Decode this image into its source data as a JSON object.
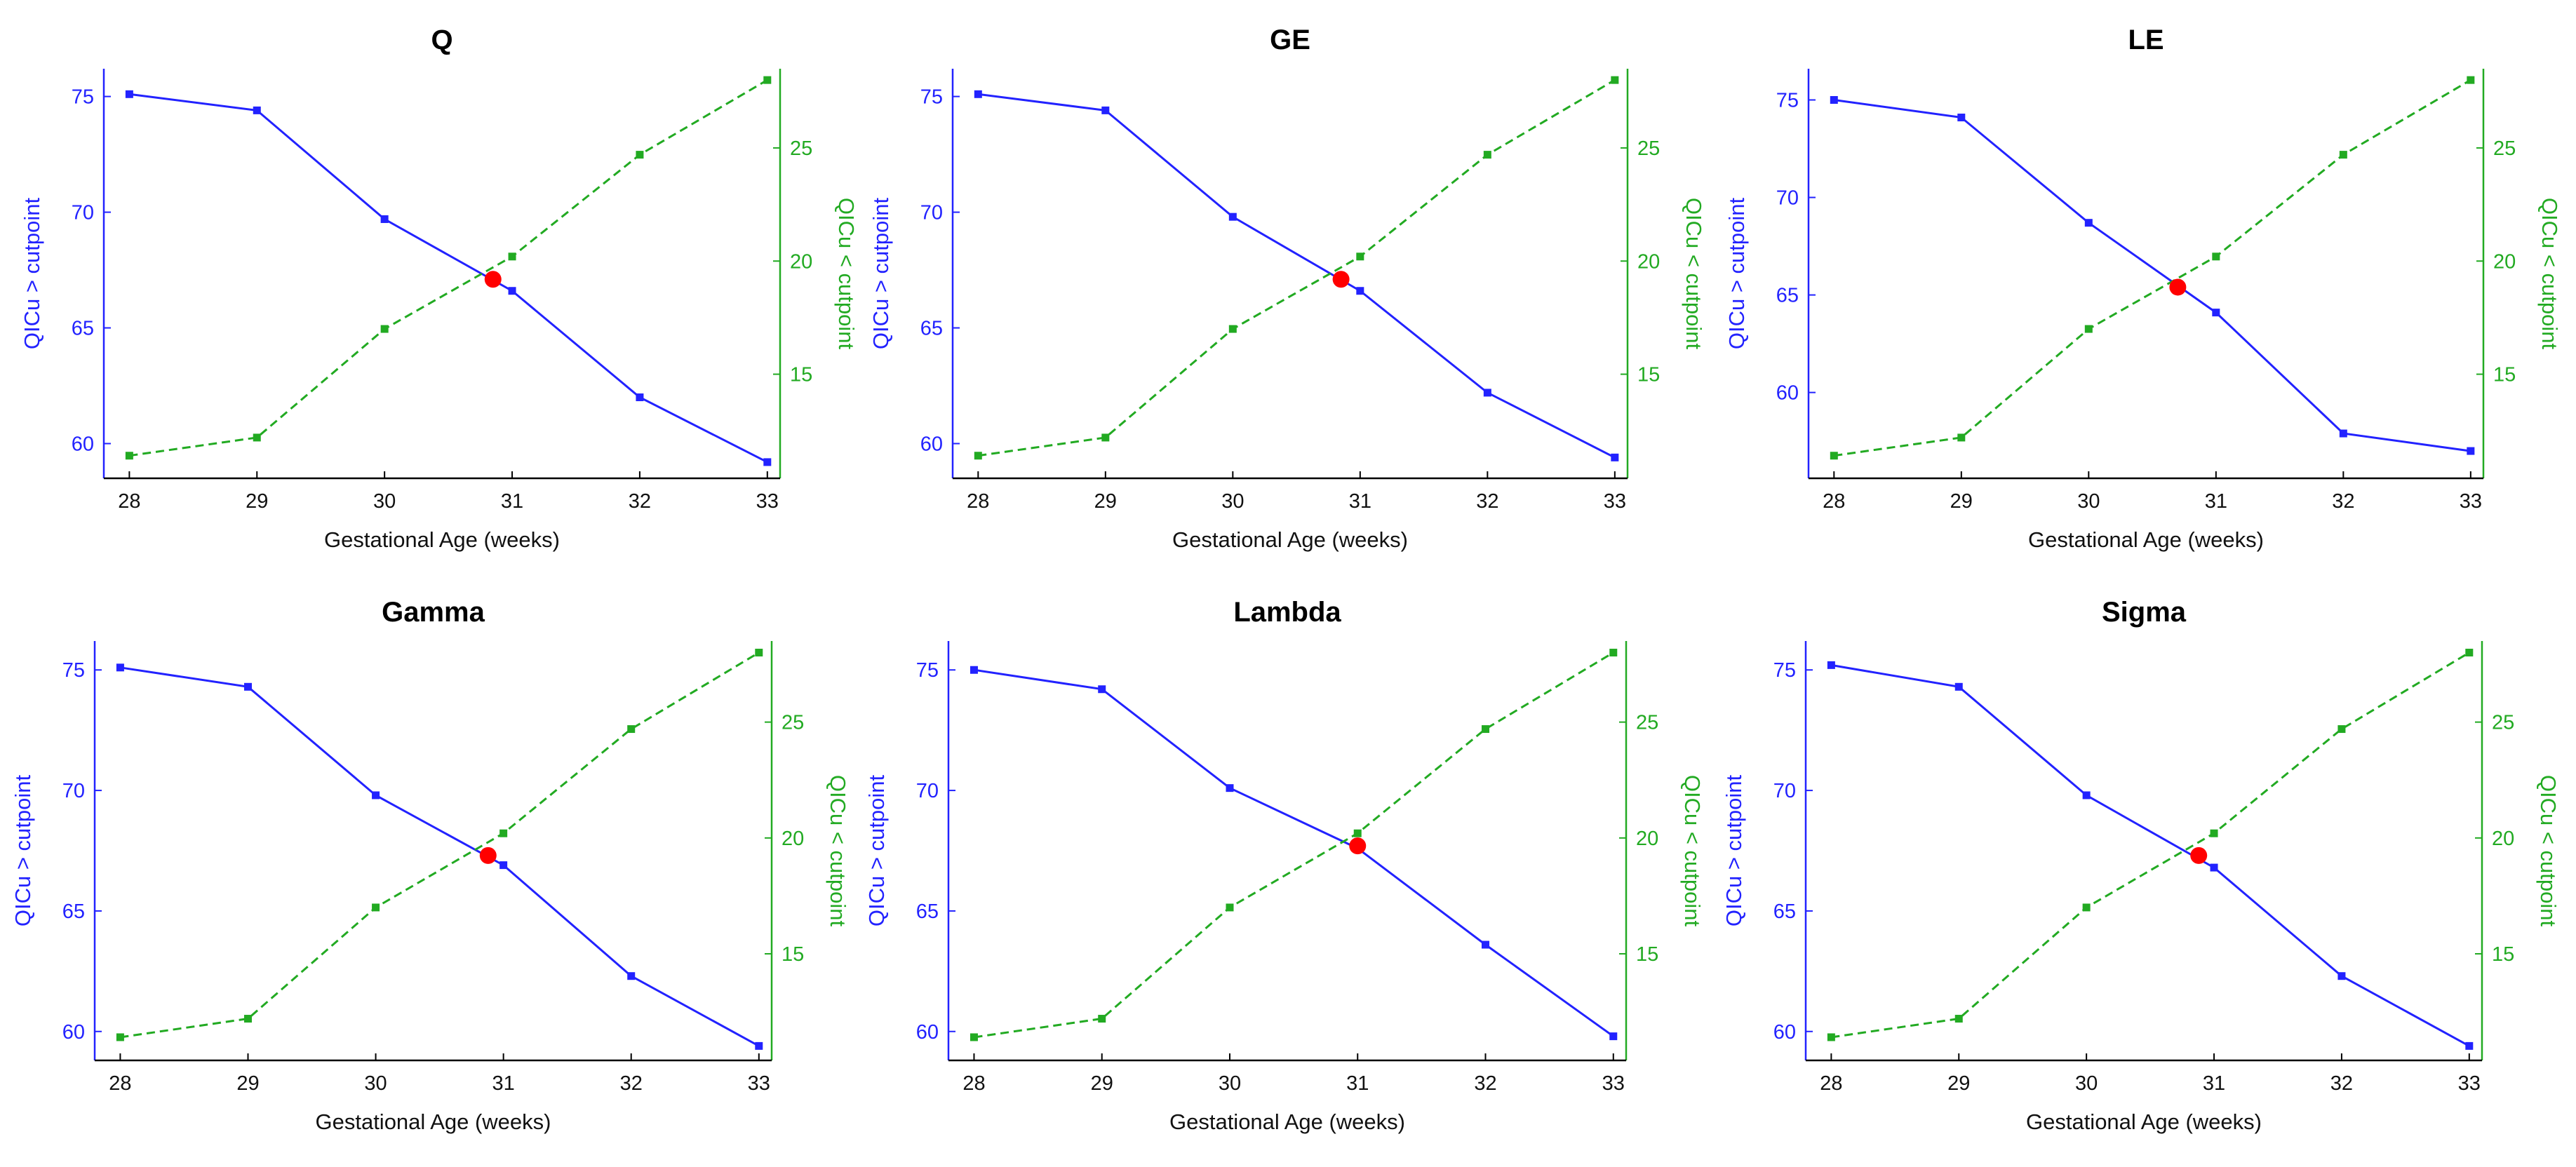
{
  "figure": {
    "colors": {
      "left_series": "#2222ff",
      "right_series": "#22aa22",
      "crossing_marker": "#ff0000",
      "axis": "#000000"
    }
  },
  "chart_data": [
    {
      "type": "line",
      "title": "Q",
      "xlabel": "Gestational Age (weeks)",
      "ylabel_left": "QICu > cutpoint",
      "ylabel_right": "QICu < cutpoint",
      "x": [
        28,
        29,
        30,
        31,
        32,
        33
      ],
      "xlim": [
        27.8,
        33.1
      ],
      "ylim_left": [
        58.5,
        76.2
      ],
      "yticks_left": [
        60,
        65,
        70,
        75
      ],
      "ylim_right": [
        10.4,
        28.5
      ],
      "yticks_right": [
        15,
        20,
        25
      ],
      "series": [
        {
          "axis": "left",
          "style": "solid",
          "x": [
            28,
            29,
            30,
            31,
            32,
            33
          ],
          "values": [
            75.1,
            74.4,
            69.7,
            66.6,
            62.0,
            59.2
          ]
        },
        {
          "axis": "right",
          "style": "dashed",
          "x": [
            28,
            29,
            30,
            31,
            32,
            33
          ],
          "values": [
            11.4,
            12.2,
            17.0,
            20.2,
            24.7,
            28.0
          ]
        }
      ],
      "crossing": {
        "x": 30.85,
        "y_left": 67.1
      }
    },
    {
      "type": "line",
      "title": "GE",
      "xlabel": "Gestational Age (weeks)",
      "ylabel_left": "QICu > cutpoint",
      "ylabel_right": "QICu < cutpoint",
      "x": [
        28,
        29,
        30,
        31,
        32,
        33
      ],
      "xlim": [
        27.8,
        33.1
      ],
      "ylim_left": [
        58.5,
        76.2
      ],
      "yticks_left": [
        60,
        65,
        70,
        75
      ],
      "ylim_right": [
        10.4,
        28.5
      ],
      "yticks_right": [
        15,
        20,
        25
      ],
      "series": [
        {
          "axis": "left",
          "style": "solid",
          "x": [
            28,
            29,
            30,
            31,
            32,
            33
          ],
          "values": [
            75.1,
            74.4,
            69.8,
            66.6,
            62.2,
            59.4
          ]
        },
        {
          "axis": "right",
          "style": "dashed",
          "x": [
            28,
            29,
            30,
            31,
            32,
            33
          ],
          "values": [
            11.4,
            12.2,
            17.0,
            20.2,
            24.7,
            28.0
          ]
        }
      ],
      "crossing": {
        "x": 30.85,
        "y_left": 67.1
      }
    },
    {
      "type": "line",
      "title": "LE",
      "xlabel": "Gestational Age (weeks)",
      "ylabel_left": "QICu > cutpoint",
      "ylabel_right": "QICu < cutpoint",
      "x": [
        28,
        29,
        30,
        31,
        32,
        33
      ],
      "xlim": [
        27.8,
        33.1
      ],
      "ylim_left": [
        55.6,
        76.6
      ],
      "yticks_left": [
        60,
        65,
        70,
        75
      ],
      "ylim_right": [
        10.4,
        28.5
      ],
      "yticks_right": [
        15,
        20,
        25
      ],
      "series": [
        {
          "axis": "left",
          "style": "solid",
          "x": [
            28,
            29,
            30,
            31,
            32,
            33
          ],
          "values": [
            75.0,
            74.1,
            68.7,
            64.1,
            57.9,
            57.0
          ]
        },
        {
          "axis": "right",
          "style": "dashed",
          "x": [
            28,
            29,
            30,
            31,
            32,
            33
          ],
          "values": [
            11.4,
            12.2,
            17.0,
            20.2,
            24.7,
            28.0
          ]
        }
      ],
      "crossing": {
        "x": 30.7,
        "y_left": 65.4
      }
    },
    {
      "type": "line",
      "title": "Gamma",
      "xlabel": "Gestational Age (weeks)",
      "ylabel_left": "QICu > cutpoint",
      "ylabel_right": "QICu < cutpoint",
      "x": [
        28,
        29,
        30,
        31,
        32,
        33
      ],
      "xlim": [
        27.8,
        33.1
      ],
      "ylim_left": [
        58.8,
        76.2
      ],
      "yticks_left": [
        60,
        65,
        70,
        75
      ],
      "ylim_right": [
        10.4,
        28.5
      ],
      "yticks_right": [
        15,
        20,
        25
      ],
      "series": [
        {
          "axis": "left",
          "style": "solid",
          "x": [
            28,
            29,
            30,
            31,
            32,
            33
          ],
          "values": [
            75.1,
            74.3,
            69.8,
            66.9,
            62.3,
            59.4
          ]
        },
        {
          "axis": "right",
          "style": "dashed",
          "x": [
            28,
            29,
            30,
            31,
            32,
            33
          ],
          "values": [
            11.4,
            12.2,
            17.0,
            20.2,
            24.7,
            28.0
          ]
        }
      ],
      "crossing": {
        "x": 30.88,
        "y_left": 67.3
      }
    },
    {
      "type": "line",
      "title": "Lambda",
      "xlabel": "Gestational Age (weeks)",
      "ylabel_left": "QICu > cutpoint",
      "ylabel_right": "QICu < cutpoint",
      "x": [
        28,
        29,
        30,
        31,
        32,
        33
      ],
      "xlim": [
        27.8,
        33.1
      ],
      "ylim_left": [
        58.8,
        76.2
      ],
      "yticks_left": [
        60,
        65,
        70,
        75
      ],
      "ylim_right": [
        10.4,
        28.5
      ],
      "yticks_right": [
        15,
        20,
        25
      ],
      "series": [
        {
          "axis": "left",
          "style": "solid",
          "x": [
            28,
            29,
            30,
            31,
            32,
            33
          ],
          "values": [
            75.0,
            74.2,
            70.1,
            67.6,
            63.6,
            59.8
          ]
        },
        {
          "axis": "right",
          "style": "dashed",
          "x": [
            28,
            29,
            30,
            31,
            32,
            33
          ],
          "values": [
            11.4,
            12.2,
            17.0,
            20.2,
            24.7,
            28.0
          ]
        }
      ],
      "crossing": {
        "x": 31.0,
        "y_left": 67.7
      }
    },
    {
      "type": "line",
      "title": "Sigma",
      "xlabel": "Gestational Age (weeks)",
      "ylabel_left": "QICu > cutpoint",
      "ylabel_right": "QICu < cutpoint",
      "x": [
        28,
        29,
        30,
        31,
        32,
        33
      ],
      "xlim": [
        27.8,
        33.1
      ],
      "ylim_left": [
        58.8,
        76.2
      ],
      "yticks_left": [
        60,
        65,
        70,
        75
      ],
      "ylim_right": [
        10.4,
        28.5
      ],
      "yticks_right": [
        15,
        20,
        25
      ],
      "series": [
        {
          "axis": "left",
          "style": "solid",
          "x": [
            28,
            29,
            30,
            31,
            32,
            33
          ],
          "values": [
            75.2,
            74.3,
            69.8,
            66.8,
            62.3,
            59.4
          ]
        },
        {
          "axis": "right",
          "style": "dashed",
          "x": [
            28,
            29,
            30,
            31,
            32,
            33
          ],
          "values": [
            11.4,
            12.2,
            17.0,
            20.2,
            24.7,
            28.0
          ]
        }
      ],
      "crossing": {
        "x": 30.88,
        "y_left": 67.3
      }
    }
  ]
}
